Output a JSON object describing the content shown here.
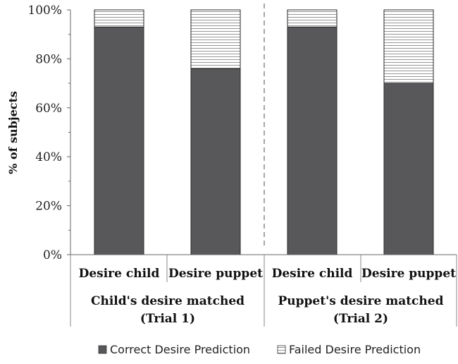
{
  "chart_data": {
    "type": "bar",
    "stacked": true,
    "ylabel": "% of subjects",
    "ylim": [
      0,
      100
    ],
    "yticks": [
      "0%",
      "20%",
      "40%",
      "60%",
      "80%",
      "100%"
    ],
    "categories": [
      "Desire child",
      "Desire puppet",
      "Desire child",
      "Desire puppet"
    ],
    "groups": [
      {
        "line1": "Child's desire matched",
        "line2": "(Trial 1)"
      },
      {
        "line1": "Puppet's desire matched",
        "line2": "(Trial 2)"
      }
    ],
    "series": [
      {
        "name": "Correct Desire Prediction",
        "values": [
          93,
          76,
          93,
          70
        ],
        "color": "#58585a"
      },
      {
        "name": "Failed Desire Prediction",
        "values": [
          7,
          24,
          7,
          30
        ],
        "color": "#ffffff"
      }
    ],
    "legend_position": "bottom",
    "grid": false
  }
}
